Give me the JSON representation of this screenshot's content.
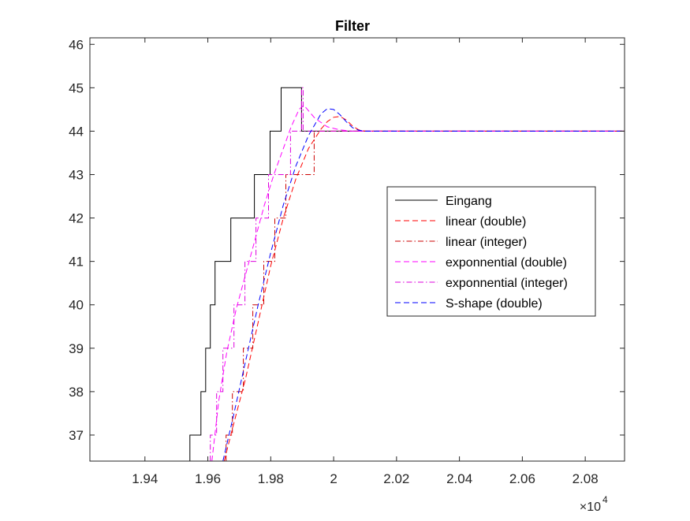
{
  "chart_data": {
    "type": "line",
    "title": "Filter",
    "xlabel": "",
    "ylabel": "",
    "x_exponent_label": "×10",
    "x_exponent_power": "4",
    "xlim": [
      1.9225,
      2.0925
    ],
    "ylim": [
      36.4,
      46.15
    ],
    "x_ticks": [
      1.94,
      1.96,
      1.98,
      2.0,
      2.02,
      2.04,
      2.06,
      2.08
    ],
    "x_tick_labels": [
      "1.94",
      "1.96",
      "1.98",
      "2",
      "2.02",
      "2.04",
      "2.06",
      "2.08"
    ],
    "y_ticks": [
      37,
      38,
      39,
      40,
      41,
      42,
      43,
      44,
      45,
      46
    ],
    "y_tick_labels": [
      "37",
      "38",
      "39",
      "40",
      "41",
      "42",
      "43",
      "44",
      "45",
      "46"
    ],
    "grid": false,
    "legend_position": "right",
    "series": [
      {
        "name": "Eingang",
        "color": "#000000",
        "dash": "solid",
        "x": [
          1.9225,
          1.9543,
          1.9543,
          1.9578,
          1.9578,
          1.9593,
          1.9593,
          1.9608,
          1.9608,
          1.9623,
          1.9623,
          1.9638,
          1.9638,
          1.9673,
          1.9673,
          1.9733,
          1.9733,
          1.9748,
          1.9748,
          1.9763,
          1.9763,
          1.9798,
          1.9798,
          1.9833,
          1.9833,
          1.9898,
          1.9898,
          2.0925
        ],
        "y": [
          36.4,
          36.4,
          37,
          37,
          38,
          38,
          39,
          39,
          40,
          40,
          41,
          41,
          41,
          41,
          42,
          42,
          42,
          42,
          43,
          43,
          43,
          43,
          44,
          44,
          45,
          45,
          44,
          44
        ]
      },
      {
        "name": "linear (double)",
        "color": "#ff0000",
        "dash": "dashed",
        "x": [
          1.9652,
          1.968,
          1.972,
          1.976,
          1.98,
          1.984,
          1.988,
          1.992,
          1.996,
          1.998,
          2.0,
          2.002,
          2.004,
          2.006,
          2.008,
          2.01,
          2.0925
        ],
        "y": [
          36.4,
          37.2,
          38.3,
          39.6,
          40.9,
          42.0,
          42.9,
          43.6,
          44.05,
          44.22,
          44.32,
          44.34,
          44.26,
          44.12,
          44.03,
          44.0,
          44.0
        ]
      },
      {
        "name": "linear (integer)",
        "color": "#cc0000",
        "dash": "dashdot",
        "x": [
          1.9658,
          1.9658,
          1.9678,
          1.9678,
          1.9713,
          1.9713,
          1.9743,
          1.9743,
          1.9778,
          1.9778,
          1.9813,
          1.9813,
          1.9848,
          1.9848,
          1.9883,
          1.9883,
          1.9938,
          1.9938,
          2.0925
        ],
        "y": [
          36.4,
          37,
          37,
          38,
          38,
          39,
          39,
          40,
          40,
          41,
          41,
          42,
          42,
          43,
          43,
          43,
          43,
          44,
          44
        ]
      },
      {
        "name": "exponnential (double)",
        "color": "#ff00ff",
        "dash": "dashed",
        "x": [
          1.9613,
          1.9635,
          1.966,
          1.969,
          1.972,
          1.975,
          1.978,
          1.981,
          1.984,
          1.9865,
          1.989,
          1.9905,
          1.994,
          1.998,
          2.002,
          2.006,
          2.0925
        ],
        "y": [
          36.4,
          37.8,
          38.9,
          39.9,
          40.7,
          41.5,
          42.3,
          43.0,
          43.6,
          44.1,
          44.5,
          44.6,
          44.3,
          44.1,
          44.03,
          44.0,
          44.0
        ]
      },
      {
        "name": "exponnential (integer)",
        "color": "#dd00dd",
        "dash": "dashdot",
        "x": [
          1.9608,
          1.9608,
          1.9628,
          1.9628,
          1.9648,
          1.9648,
          1.9683,
          1.9683,
          1.9718,
          1.9718,
          1.9753,
          1.9753,
          1.9793,
          1.9793,
          1.9828,
          1.9828,
          1.9863,
          1.9863,
          1.9898,
          1.9898,
          1.9903,
          1.9903,
          2.0925
        ],
        "y": [
          36.4,
          37,
          37,
          38,
          38,
          39,
          39,
          40,
          40,
          41,
          41,
          42,
          42,
          43,
          43,
          43,
          43,
          44,
          44,
          45,
          45,
          44,
          44
        ]
      },
      {
        "name": "S-shape (double)",
        "color": "#0000ff",
        "dash": "dashed",
        "x": [
          1.9648,
          1.968,
          1.972,
          1.976,
          1.98,
          1.984,
          1.988,
          1.992,
          1.996,
          1.998,
          2.0,
          2.002,
          2.004,
          2.006,
          2.008,
          2.01,
          2.0925
        ],
        "y": [
          36.4,
          37.4,
          38.7,
          40.0,
          41.2,
          42.3,
          43.2,
          43.9,
          44.4,
          44.52,
          44.5,
          44.38,
          44.22,
          44.08,
          44.02,
          44.0,
          44.0
        ]
      }
    ]
  }
}
